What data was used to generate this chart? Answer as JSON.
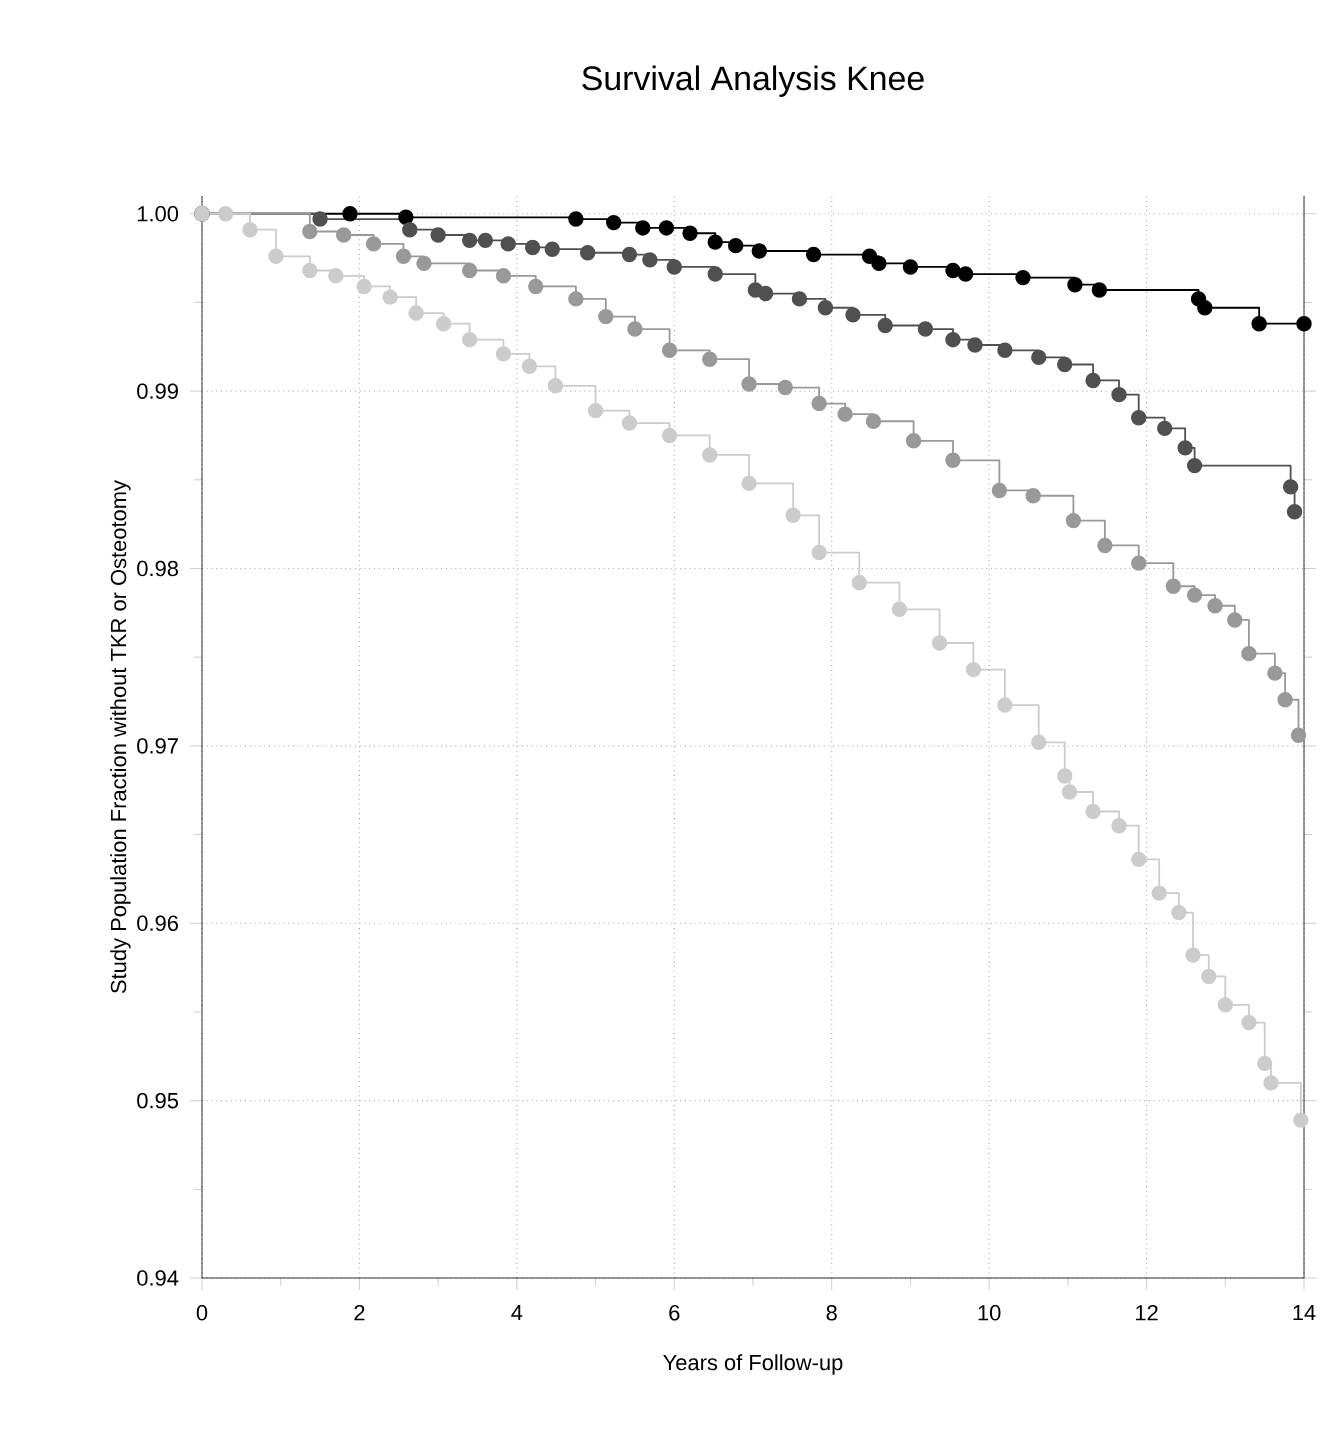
{
  "chart_data": {
    "type": "step",
    "title": "Survival Analysis Knee",
    "xlabel": "Years of Follow-up",
    "ylabel": "Study Population Fraction without TKR or Osteotomy",
    "xlim": [
      0,
      14
    ],
    "xticks": [
      0,
      2,
      4,
      6,
      8,
      10,
      12,
      14
    ],
    "ylim": [
      0.94,
      1.001
    ],
    "yticks": [
      {
        "value": 0.94,
        "label": "0.94"
      },
      {
        "value": 0.95,
        "label": "0.95"
      },
      {
        "value": 0.96,
        "label": "0.96"
      },
      {
        "value": 0.97,
        "label": "0.97"
      },
      {
        "value": 0.98,
        "label": "0.98"
      },
      {
        "value": 0.99,
        "label": "0.99"
      },
      {
        "value": 1.0,
        "label": "1.00"
      }
    ],
    "grid": true,
    "marker": "circle",
    "line_style": "solid",
    "series": [
      {
        "color": "#000000",
        "x": [
          0,
          1.88,
          2.59,
          4.75,
          5.23,
          5.6,
          5.9,
          6.2,
          6.52,
          6.78,
          7.08,
          7.77,
          8.48,
          8.6,
          9.0,
          9.54,
          9.7,
          10.43,
          11.09,
          11.4,
          12.66,
          12.74,
          13.43,
          14
        ],
        "values": [
          1.0,
          1.0,
          0.9998,
          0.9997,
          0.9995,
          0.9992,
          0.9992,
          0.9989,
          0.9984,
          0.9982,
          0.9979,
          0.9977,
          0.9976,
          0.9972,
          0.997,
          0.9968,
          0.9966,
          0.9964,
          0.996,
          0.9957,
          0.9952,
          0.9947,
          0.9938,
          0.9938
        ]
      },
      {
        "color": "#505050",
        "x": [
          0,
          1.5,
          2.64,
          3.0,
          3.4,
          3.6,
          3.89,
          4.2,
          4.45,
          4.9,
          5.43,
          5.69,
          6.0,
          6.52,
          7.03,
          7.16,
          7.59,
          7.92,
          8.27,
          8.68,
          9.19,
          9.54,
          9.82,
          10.2,
          10.63,
          10.96,
          11.32,
          11.65,
          11.9,
          12.23,
          12.49,
          12.61,
          13.83,
          13.88
        ],
        "values": [
          1.0,
          0.9997,
          0.9991,
          0.9988,
          0.9985,
          0.9985,
          0.9983,
          0.9981,
          0.998,
          0.9978,
          0.9977,
          0.9974,
          0.997,
          0.9966,
          0.9957,
          0.9955,
          0.9952,
          0.9947,
          0.9943,
          0.9937,
          0.9935,
          0.9929,
          0.9926,
          0.9923,
          0.9919,
          0.9915,
          0.9906,
          0.9898,
          0.9885,
          0.9879,
          0.9868,
          0.9858,
          0.9846,
          0.9832
        ]
      },
      {
        "color": "#999999",
        "x": [
          0,
          1.37,
          1.8,
          2.18,
          2.56,
          2.82,
          3.4,
          3.83,
          4.24,
          4.75,
          5.13,
          5.5,
          5.94,
          6.45,
          6.95,
          7.41,
          7.84,
          8.17,
          8.53,
          9.04,
          9.54,
          10.13,
          10.56,
          11.07,
          11.47,
          11.9,
          12.34,
          12.61,
          12.87,
          13.12,
          13.3,
          13.63,
          13.76,
          13.93
        ],
        "values": [
          1.0,
          0.999,
          0.9988,
          0.9983,
          0.9976,
          0.9972,
          0.9968,
          0.9965,
          0.9959,
          0.9952,
          0.9942,
          0.9935,
          0.9923,
          0.9918,
          0.9904,
          0.9902,
          0.9893,
          0.9887,
          0.9883,
          0.9872,
          0.9861,
          0.9844,
          0.9841,
          0.9827,
          0.9813,
          0.9803,
          0.979,
          0.9785,
          0.9779,
          0.9771,
          0.9752,
          0.9741,
          0.9726,
          0.9706
        ]
      },
      {
        "color": "#cccccc",
        "x": [
          0,
          0.3,
          0.61,
          0.94,
          1.37,
          1.7,
          2.06,
          2.39,
          2.72,
          3.07,
          3.4,
          3.83,
          4.16,
          4.49,
          5.0,
          5.43,
          5.94,
          6.45,
          6.95,
          7.51,
          7.84,
          8.35,
          8.86,
          9.37,
          9.8,
          10.2,
          10.63,
          10.96,
          11.02,
          11.32,
          11.65,
          11.9,
          12.16,
          12.41,
          12.59,
          12.79,
          13.0,
          13.3,
          13.5,
          13.58,
          13.96
        ],
        "values": [
          1.0,
          1.0,
          0.9991,
          0.9976,
          0.9968,
          0.9965,
          0.9959,
          0.9953,
          0.9944,
          0.9938,
          0.9929,
          0.9921,
          0.9914,
          0.9903,
          0.9889,
          0.9882,
          0.9875,
          0.9864,
          0.9848,
          0.983,
          0.9809,
          0.9792,
          0.9777,
          0.9758,
          0.9743,
          0.9723,
          0.9702,
          0.9683,
          0.9674,
          0.9663,
          0.9655,
          0.9636,
          0.9617,
          0.9606,
          0.9582,
          0.957,
          0.9554,
          0.9544,
          0.9521,
          0.951,
          0.9489
        ]
      }
    ]
  }
}
